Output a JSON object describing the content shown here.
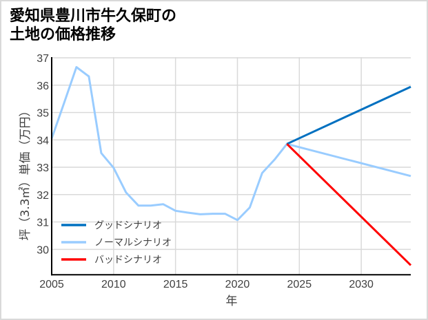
{
  "title": {
    "line1": "愛知県豊川市牛久保町の",
    "line2": "土地の価格推移"
  },
  "chart_data": {
    "type": "line",
    "title": "愛知県豊川市牛久保町の土地の価格推移",
    "xlabel": "年",
    "ylabel": "坪（3.3㎡）単価（万円）",
    "xlim": [
      2005,
      2034
    ],
    "ylim": [
      29.07,
      37
    ],
    "xticks": [
      2005,
      2010,
      2015,
      2020,
      2025,
      2030
    ],
    "yticks": [
      30,
      31,
      32,
      33,
      34,
      35,
      36,
      37
    ],
    "grid": true,
    "legend_position": "inside plot, lower left",
    "series": [
      {
        "name": "グッドシナリオ",
        "color": "#0070C0",
        "x": [
          2024,
          2034
        ],
        "y": [
          33.85,
          35.94
        ]
      },
      {
        "name": "ノーマルシナリオ",
        "color": "#99CCFF",
        "x": [
          2005,
          2006,
          2007,
          2008,
          2009,
          2010,
          2011,
          2012,
          2013,
          2014,
          2015,
          2016,
          2017,
          2018,
          2019,
          2020,
          2021,
          2022,
          2023,
          2024,
          2034
        ],
        "y": [
          34.05,
          35.35,
          36.66,
          36.32,
          33.52,
          32.98,
          32.08,
          31.6,
          31.6,
          31.65,
          31.41,
          31.34,
          31.28,
          31.3,
          31.3,
          31.07,
          31.53,
          32.79,
          33.28,
          33.85,
          32.68
        ]
      },
      {
        "name": "バッドシナリオ",
        "color": "#FF0000",
        "x": [
          2024,
          2034
        ],
        "y": [
          33.85,
          29.42
        ]
      }
    ]
  },
  "colors": {
    "grid": "#D9D9D9",
    "axis": "#000000",
    "frame": "#D9D9D9"
  }
}
